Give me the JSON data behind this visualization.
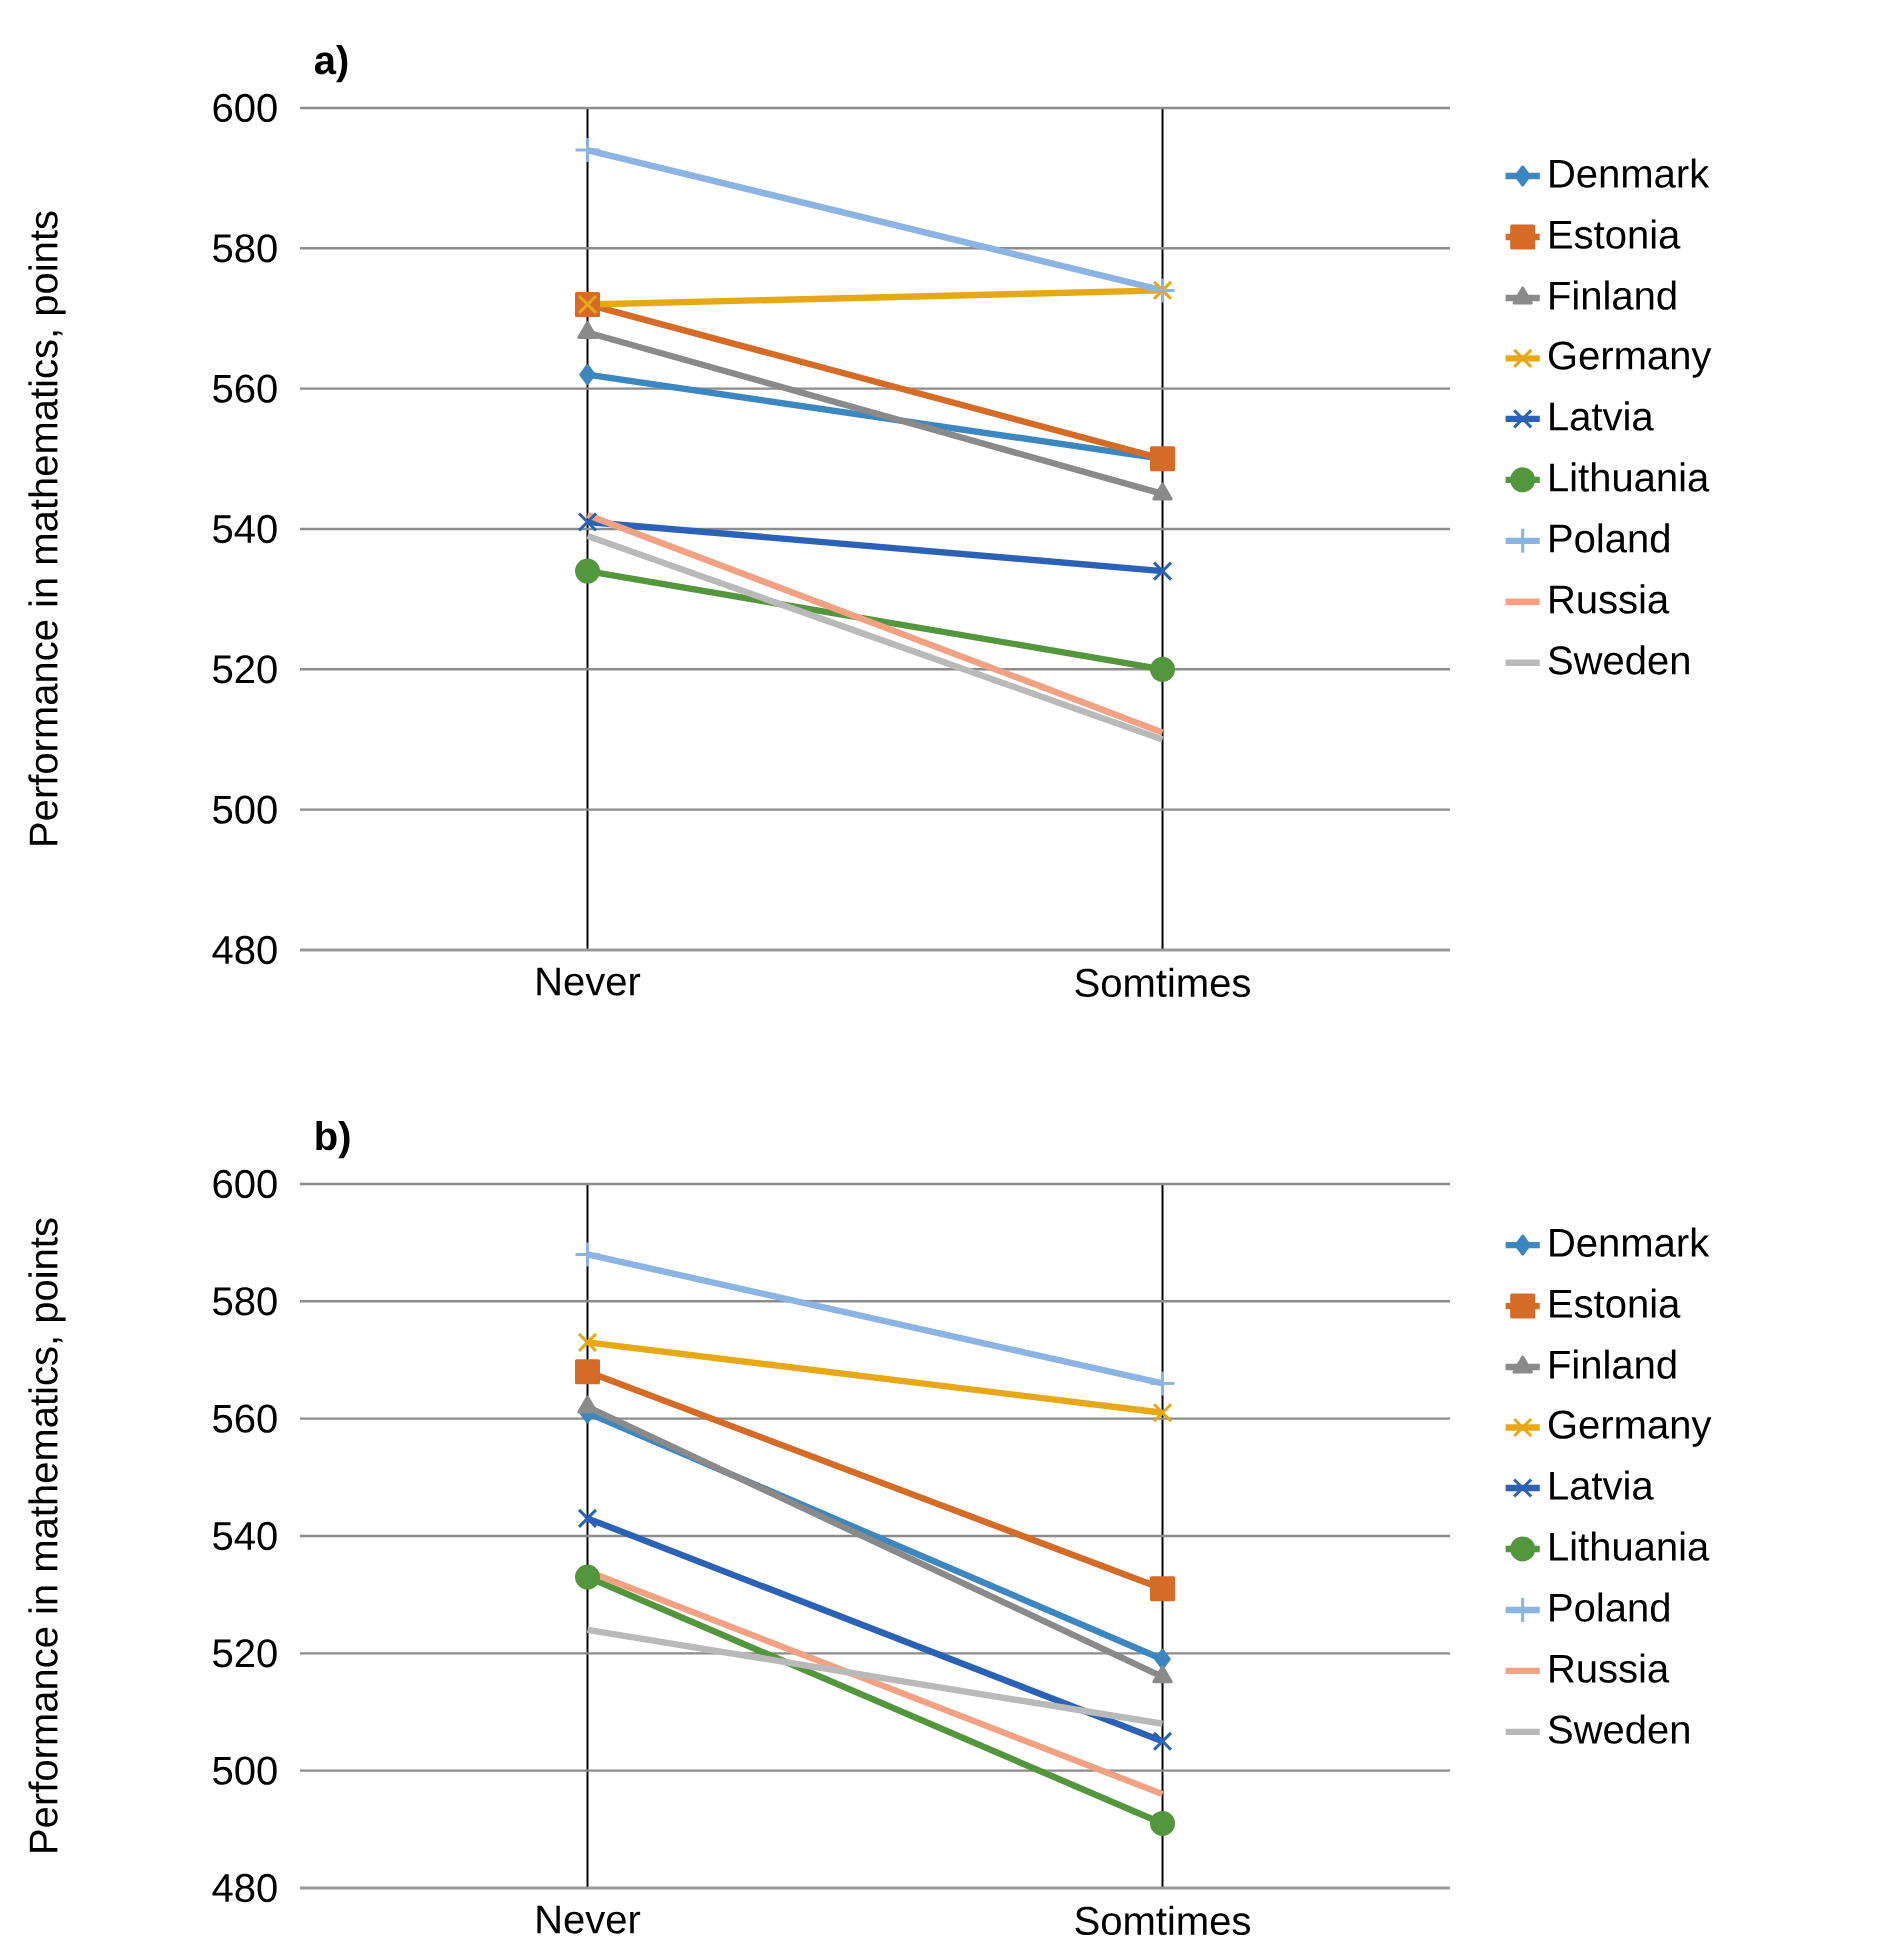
{
  "chart_data": [
    {
      "type": "line",
      "title": "a)",
      "ylabel": "Performance in mathematics, points",
      "categories": [
        "Never",
        "Somtimes"
      ],
      "ylim": [
        480,
        600
      ],
      "yticks": [
        480,
        500,
        520,
        540,
        560,
        580,
        600
      ],
      "grid": true,
      "legend": "right",
      "line_style": "solid",
      "series": [
        {
          "name": "Denmark",
          "color": "#3c87c0",
          "marker": "diamond",
          "values": [
            562,
            550
          ]
        },
        {
          "name": "Estonia",
          "color": "#d46b26",
          "marker": "square",
          "values": [
            572,
            550
          ]
        },
        {
          "name": "Finland",
          "color": "#8a8a8a",
          "marker": "triangle",
          "values": [
            568,
            545
          ]
        },
        {
          "name": "Germany",
          "color": "#e6a817",
          "marker": "cross",
          "values": [
            572,
            574
          ]
        },
        {
          "name": "Latvia",
          "color": "#2b62b5",
          "marker": "cross",
          "values": [
            541,
            534
          ]
        },
        {
          "name": "Lithuania",
          "color": "#54963e",
          "marker": "circle",
          "values": [
            534,
            520
          ]
        },
        {
          "name": "Poland",
          "color": "#8cb4e2",
          "marker": "plus",
          "values": [
            594,
            574
          ]
        },
        {
          "name": "Russia",
          "color": "#f2a283",
          "marker": "none",
          "values": [
            542,
            511
          ]
        },
        {
          "name": "Sweden",
          "color": "#b9b9b9",
          "marker": "none",
          "values": [
            539,
            510
          ]
        }
      ]
    },
    {
      "type": "line",
      "title": "b)",
      "ylabel": "Performance in mathematics, points",
      "categories": [
        "Never",
        "Somtimes"
      ],
      "ylim": [
        480,
        600
      ],
      "yticks": [
        480,
        500,
        520,
        540,
        560,
        580,
        600
      ],
      "grid": true,
      "legend": "right",
      "line_style": "solid",
      "series": [
        {
          "name": "Denmark",
          "color": "#3c87c0",
          "marker": "diamond",
          "values": [
            561,
            519
          ]
        },
        {
          "name": "Estonia",
          "color": "#d46b26",
          "marker": "square",
          "values": [
            568,
            531
          ]
        },
        {
          "name": "Finland",
          "color": "#8a8a8a",
          "marker": "triangle",
          "values": [
            562,
            516
          ]
        },
        {
          "name": "Germany",
          "color": "#e6a817",
          "marker": "cross",
          "values": [
            573,
            561
          ]
        },
        {
          "name": "Latvia",
          "color": "#2b62b5",
          "marker": "cross",
          "values": [
            543,
            505
          ]
        },
        {
          "name": "Lithuania",
          "color": "#54963e",
          "marker": "circle",
          "values": [
            533,
            491
          ]
        },
        {
          "name": "Poland",
          "color": "#8cb4e2",
          "marker": "plus",
          "values": [
            588,
            566
          ]
        },
        {
          "name": "Russia",
          "color": "#f2a283",
          "marker": "none",
          "values": [
            534,
            496
          ]
        },
        {
          "name": "Sweden",
          "color": "#b9b9b9",
          "marker": "none",
          "values": [
            524,
            508
          ]
        }
      ]
    }
  ]
}
